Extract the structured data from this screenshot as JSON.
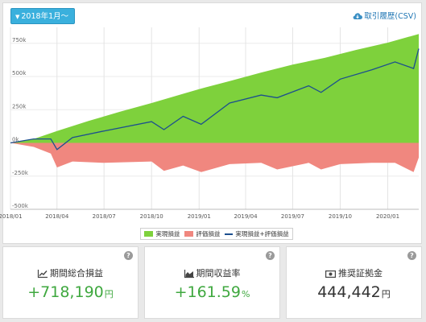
{
  "controls": {
    "period_label": "2018年1月〜",
    "csv_label": "取引履歴(CSV)"
  },
  "colors": {
    "realized": "#7ed13c",
    "unrealized": "#f0877f",
    "total_line": "#1c4f8e",
    "positive_text": "#3fa83f"
  },
  "chart_data": {
    "type": "area",
    "title": "",
    "xlabel": "",
    "ylabel": "",
    "x_ticks": [
      "2018/01",
      "2018/04",
      "2018/07",
      "2018/10",
      "2019/01",
      "2019/04",
      "2019/07",
      "2019/10",
      "2020/01"
    ],
    "y_ticks": [
      "750k",
      "500k",
      "250k",
      "0k",
      "-250k",
      "-500k"
    ],
    "y_tick_values": [
      750000,
      500000,
      250000,
      0,
      -250000,
      -500000
    ],
    "ylim": [
      -500000,
      870000
    ],
    "grid": true,
    "legend_position": "bottom-center",
    "series": [
      {
        "name": "実現損益",
        "kind": "area",
        "x": [
          "2018-01-01",
          "2018-02-15",
          "2018-04-01",
          "2018-06-01",
          "2018-08-01",
          "2018-10-01",
          "2018-12-01",
          "2019-01-01",
          "2019-03-01",
          "2019-05-01",
          "2019-07-01",
          "2019-09-01",
          "2019-11-01",
          "2020-01-01",
          "2020-03-01"
        ],
        "values": [
          0,
          30000,
          90000,
          165000,
          235000,
          300000,
          370000,
          405000,
          465000,
          530000,
          590000,
          640000,
          700000,
          755000,
          820000
        ]
      },
      {
        "name": "評価損益",
        "kind": "area",
        "x": [
          "2018-01-01",
          "2018-02-15",
          "2018-03-20",
          "2018-04-01",
          "2018-05-01",
          "2018-07-01",
          "2018-10-01",
          "2018-10-25",
          "2018-12-01",
          "2019-01-05",
          "2019-03-01",
          "2019-05-01",
          "2019-06-01",
          "2019-08-01",
          "2019-08-25",
          "2019-10-01",
          "2019-12-01",
          "2020-01-15",
          "2020-02-20",
          "2020-03-01"
        ],
        "values": [
          0,
          -30000,
          -80000,
          -185000,
          -140000,
          -150000,
          -140000,
          -210000,
          -170000,
          -220000,
          -160000,
          -150000,
          -200000,
          -150000,
          -200000,
          -160000,
          -150000,
          -150000,
          -220000,
          -110000
        ]
      },
      {
        "name": "実現損益+評価損益",
        "kind": "line",
        "x": [
          "2018-01-01",
          "2018-02-15",
          "2018-03-20",
          "2018-04-01",
          "2018-05-01",
          "2018-07-01",
          "2018-10-01",
          "2018-10-25",
          "2018-12-01",
          "2019-01-05",
          "2019-03-01",
          "2019-05-01",
          "2019-06-01",
          "2019-08-01",
          "2019-08-25",
          "2019-10-01",
          "2019-12-01",
          "2020-01-15",
          "2020-02-20",
          "2020-03-01"
        ],
        "values": [
          0,
          30000,
          30000,
          -50000,
          40000,
          90000,
          160000,
          100000,
          200000,
          140000,
          300000,
          360000,
          340000,
          430000,
          380000,
          480000,
          550000,
          610000,
          560000,
          710000
        ]
      }
    ]
  },
  "stats": [
    {
      "label": "期間総合損益",
      "icon": "line-chart-icon",
      "value": "+718,190",
      "unit": "円",
      "tone": "positive"
    },
    {
      "label": "期間収益率",
      "icon": "area-chart-icon",
      "value": "+161.59",
      "unit": "%",
      "tone": "positive"
    },
    {
      "label": "推奨証拠金",
      "icon": "money-icon",
      "value": "444,442",
      "unit": "円",
      "tone": "neutral"
    }
  ],
  "help_symbol": "?"
}
